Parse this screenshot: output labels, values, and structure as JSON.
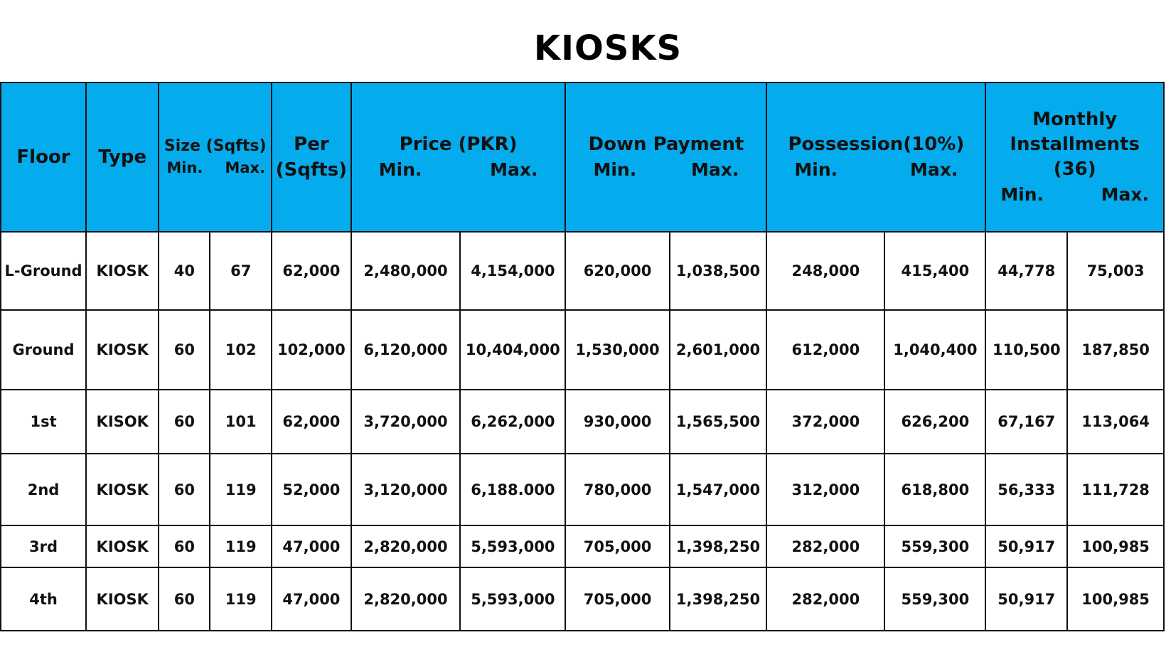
{
  "title": "KIOSKS",
  "header": {
    "floor": "Floor",
    "type": "Type",
    "size": {
      "label": "Size (Sqfts)",
      "min": "Min.",
      "max": "Max."
    },
    "per_line1": "Per",
    "per_line2": "(Sqfts)",
    "price": {
      "label": "Price (PKR)",
      "min": "Min.",
      "max": "Max."
    },
    "down_payment": {
      "label": "Down Payment",
      "min": "Min.",
      "max": "Max."
    },
    "possession": {
      "label": "Possession(10%)",
      "min": "Min.",
      "max": "Max."
    },
    "monthly": {
      "line1": "Monthly",
      "line2": "Installments (36)",
      "min": "Min.",
      "max": "Max."
    }
  },
  "rows": [
    {
      "floor": "L-Ground",
      "type": "KIOSK",
      "size_min": "40",
      "size_max": "67",
      "per_sqft": "62,000",
      "price_min": "2,480,000",
      "price_max": "4,154,000",
      "down_min": "620,000",
      "down_max": "1,038,500",
      "poss_min": "248,000",
      "poss_max": "415,400",
      "inst_min": "44,778",
      "inst_max": "75,003"
    },
    {
      "floor": "Ground",
      "type": "KIOSK",
      "size_min": "60",
      "size_max": "102",
      "per_sqft": "102,000",
      "price_min": "6,120,000",
      "price_max": "10,404,000",
      "down_min": "1,530,000",
      "down_max": "2,601,000",
      "poss_min": "612,000",
      "poss_max": "1,040,400",
      "inst_min": "110,500",
      "inst_max": "187,850"
    },
    {
      "floor": "1st",
      "type": "KISOK",
      "size_min": "60",
      "size_max": "101",
      "per_sqft": "62,000",
      "price_min": "3,720,000",
      "price_max": "6,262,000",
      "down_min": "930,000",
      "down_max": "1,565,500",
      "poss_min": "372,000",
      "poss_max": "626,200",
      "inst_min": "67,167",
      "inst_max": "113,064"
    },
    {
      "floor": "2nd",
      "type": "KIOSK",
      "size_min": "60",
      "size_max": "119",
      "per_sqft": "52,000",
      "price_min": "3,120,000",
      "price_max": "6,188.000",
      "down_min": "780,000",
      "down_max": "1,547,000",
      "poss_min": "312,000",
      "poss_max": "618,800",
      "inst_min": "56,333",
      "inst_max": "111,728"
    },
    {
      "floor": "3rd",
      "type": "KIOSK",
      "size_min": "60",
      "size_max": "119",
      "per_sqft": "47,000",
      "price_min": "2,820,000",
      "price_max": "5,593,000",
      "down_min": "705,000",
      "down_max": "1,398,250",
      "poss_min": "282,000",
      "poss_max": "559,300",
      "inst_min": "50,917",
      "inst_max": "100,985"
    },
    {
      "floor": "4th",
      "type": "KIOSK",
      "size_min": "60",
      "size_max": "119",
      "per_sqft": "47,000",
      "price_min": "2,820,000",
      "price_max": "5,593,000",
      "down_min": "705,000",
      "down_max": "1,398,250",
      "poss_min": "282,000",
      "poss_max": "559,300",
      "inst_min": "50,917",
      "inst_max": "100,985"
    }
  ],
  "colors": {
    "header_bg": "#04acee",
    "border": "#111111",
    "text": "#111111"
  }
}
